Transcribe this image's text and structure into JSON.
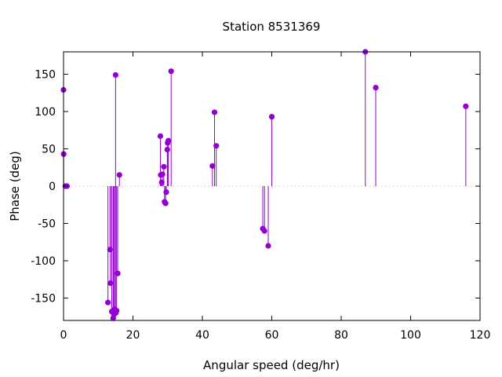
{
  "chart_data": {
    "type": "stem",
    "title": "Station 8531369",
    "xlabel": "Angular speed (deg/hr)",
    "ylabel": "Phase (deg)",
    "xlim": [
      0,
      120
    ],
    "ylim": [
      -180,
      180
    ],
    "xticks": [
      0,
      20,
      40,
      60,
      80,
      100,
      120
    ],
    "yticks": [
      -150,
      -100,
      -50,
      0,
      50,
      100,
      150
    ],
    "grid": false,
    "zero_line": "dotted",
    "color": "#9400d3",
    "points": [
      {
        "x": 0.0,
        "y": 129
      },
      {
        "x": 0.04,
        "y": 43
      },
      {
        "x": 0.5,
        "y": 0
      },
      {
        "x": 1.0,
        "y": 0
      },
      {
        "x": 12.8,
        "y": -156
      },
      {
        "x": 13.4,
        "y": -85
      },
      {
        "x": 13.5,
        "y": -130
      },
      {
        "x": 13.9,
        "y": -168
      },
      {
        "x": 14.3,
        "y": -177
      },
      {
        "x": 14.5,
        "y": -172
      },
      {
        "x": 14.7,
        "y": -165
      },
      {
        "x": 15.0,
        "y": 149
      },
      {
        "x": 15.05,
        "y": -170
      },
      {
        "x": 15.3,
        "y": -167
      },
      {
        "x": 15.6,
        "y": -117
      },
      {
        "x": 16.1,
        "y": 15
      },
      {
        "x": 27.9,
        "y": 67
      },
      {
        "x": 28.0,
        "y": 15
      },
      {
        "x": 28.3,
        "y": 5
      },
      {
        "x": 28.5,
        "y": 16
      },
      {
        "x": 28.9,
        "y": 26
      },
      {
        "x": 29.1,
        "y": -21
      },
      {
        "x": 29.4,
        "y": -23
      },
      {
        "x": 29.6,
        "y": -8
      },
      {
        "x": 29.9,
        "y": 49
      },
      {
        "x": 30.0,
        "y": 58
      },
      {
        "x": 30.2,
        "y": 61
      },
      {
        "x": 31.0,
        "y": 154
      },
      {
        "x": 42.9,
        "y": 27
      },
      {
        "x": 43.5,
        "y": 99
      },
      {
        "x": 44.0,
        "y": 54
      },
      {
        "x": 57.4,
        "y": -57
      },
      {
        "x": 57.9,
        "y": -60
      },
      {
        "x": 58.98,
        "y": -80
      },
      {
        "x": 60.0,
        "y": 93
      },
      {
        "x": 86.95,
        "y": 180
      },
      {
        "x": 89.95,
        "y": 132
      },
      {
        "x": 115.9,
        "y": 107
      }
    ]
  }
}
